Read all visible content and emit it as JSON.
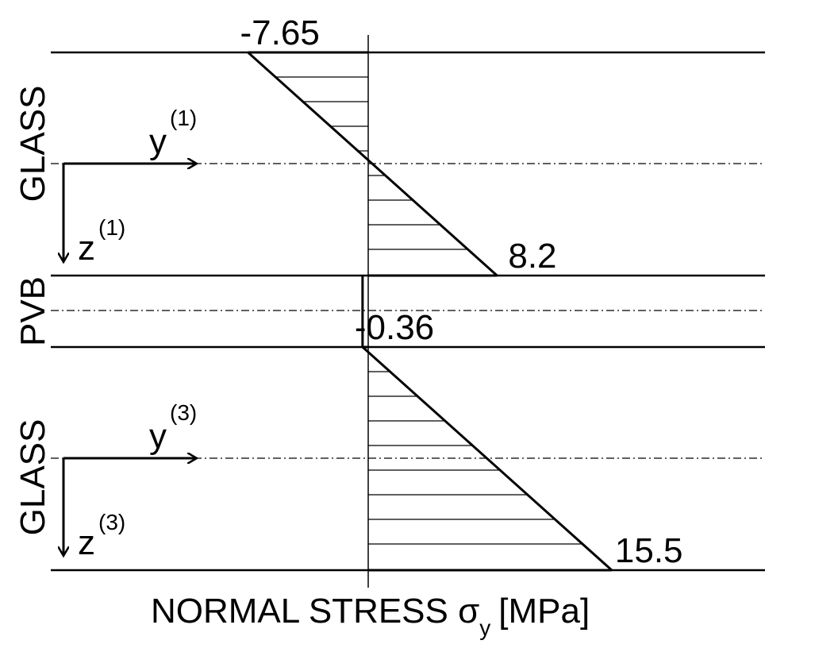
{
  "layers": [
    "GLASS",
    "PVB",
    "GLASS"
  ],
  "axes": [
    {
      "y": "y",
      "y_sup": "(1)",
      "z": "z",
      "z_sup": "(1)"
    },
    {
      "y": "y",
      "y_sup": "(3)",
      "z": "z",
      "z_sup": "(3)"
    }
  ],
  "stress": [
    -7.65,
    8.2,
    -0.36,
    15.5
  ],
  "x_label": {
    "main": "NORMAL STRESS σ",
    "sub": "y",
    "unit": "[MPa]"
  }
}
